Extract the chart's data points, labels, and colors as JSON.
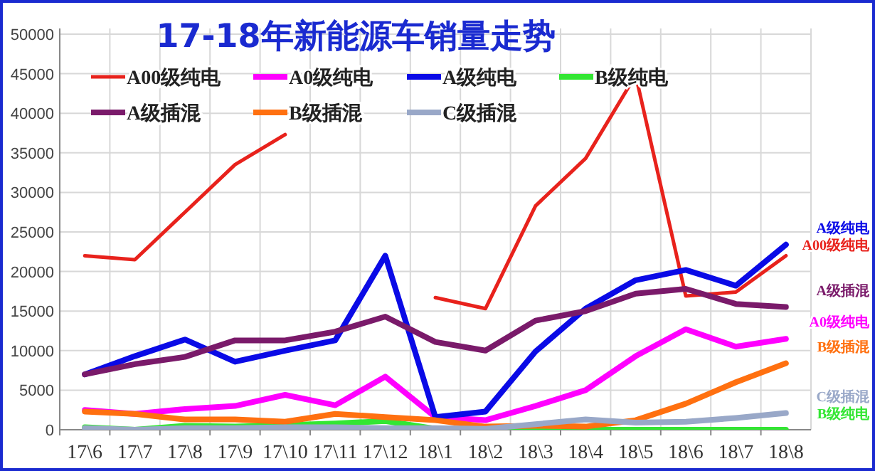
{
  "chart_data": {
    "type": "line",
    "title": "17-18年新能源车销量走势",
    "categories": [
      "17\\6",
      "17\\7",
      "17\\8",
      "17\\9",
      "17\\10",
      "17\\11",
      "17\\12",
      "18\\1",
      "18\\2",
      "18\\3",
      "18\\4",
      "18\\5",
      "18\\6",
      "18\\7",
      "18\\8"
    ],
    "series": [
      {
        "name": "A00级纯电",
        "color": "#e8221c",
        "values": [
          22000,
          21500,
          27500,
          33500,
          37300,
          null,
          null,
          16700,
          15300,
          28300,
          34300,
          44800,
          16900,
          17400,
          22000
        ]
      },
      {
        "name": "A0级纯电",
        "color": "#ff00ff",
        "values": [
          2500,
          2000,
          2600,
          3000,
          4400,
          3100,
          6700,
          1600,
          1200,
          3000,
          5000,
          9300,
          12700,
          10500,
          11500
        ]
      },
      {
        "name": "A级纯电",
        "color": "#0a0ae6",
        "values": [
          7000,
          9300,
          11400,
          8600,
          10000,
          11300,
          22000,
          1600,
          2300,
          9900,
          15300,
          18900,
          20200,
          18200,
          23400
        ]
      },
      {
        "name": "B级纯电",
        "color": "#33e633",
        "values": [
          300,
          0,
          500,
          400,
          600,
          800,
          1100,
          100,
          0,
          0,
          0,
          0,
          0,
          0,
          0
        ]
      },
      {
        "name": "A级插混",
        "color": "#7a1a6a",
        "values": [
          7000,
          8300,
          9200,
          11300,
          11300,
          12400,
          14300,
          11100,
          10000,
          13800,
          15000,
          17200,
          17800,
          15900,
          15500
        ]
      },
      {
        "name": "B级插混",
        "color": "#ff7010",
        "values": [
          2300,
          2000,
          1300,
          1300,
          1000,
          2000,
          1600,
          1200,
          400,
          500,
          400,
          1200,
          3300,
          6000,
          8400
        ]
      },
      {
        "name": "C级插混",
        "color": "#99a8c8",
        "values": [
          200,
          0,
          200,
          200,
          300,
          300,
          200,
          200,
          100,
          700,
          1300,
          900,
          1000,
          1500,
          2100
        ]
      }
    ],
    "ylim": [
      0,
      50000
    ],
    "yticks": [
      0,
      5000,
      10000,
      15000,
      20000,
      25000,
      30000,
      35000,
      40000,
      45000,
      50000
    ],
    "grid": true,
    "legend": "top",
    "marker": "none",
    "line_style": "solid"
  }
}
